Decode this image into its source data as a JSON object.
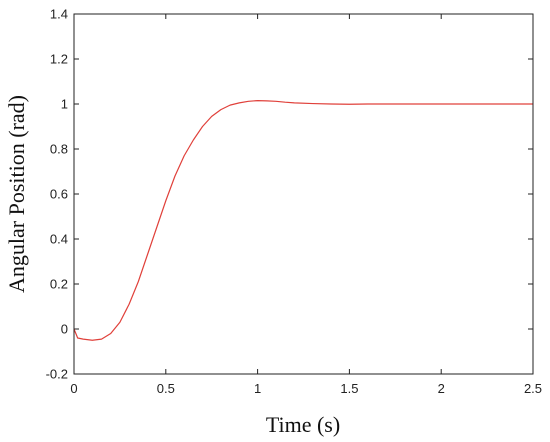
{
  "chart_data": {
    "type": "line",
    "xlabel": "Time (s)",
    "ylabel": "Angular Position (rad)",
    "xlim": [
      0,
      2.5
    ],
    "ylim": [
      -0.2,
      1.4
    ],
    "xticks": [
      "0",
      "0.5",
      "1",
      "1.5",
      "2",
      "2.5"
    ],
    "yticks": [
      "-0.2",
      "0",
      "0.2",
      "0.4",
      "0.6",
      "0.8",
      "1",
      "1.2",
      "1.4"
    ],
    "grid": false,
    "series": [
      {
        "color": "#e0403a",
        "x": [
          0,
          0.01,
          0.02,
          0.05,
          0.1,
          0.15,
          0.2,
          0.25,
          0.3,
          0.35,
          0.4,
          0.45,
          0.5,
          0.55,
          0.6,
          0.65,
          0.7,
          0.75,
          0.8,
          0.85,
          0.9,
          0.95,
          1.0,
          1.05,
          1.1,
          1.15,
          1.2,
          1.3,
          1.4,
          1.5,
          1.6,
          1.8,
          2.0,
          2.2,
          2.5
        ],
        "y": [
          0,
          -0.02,
          -0.04,
          -0.045,
          -0.05,
          -0.045,
          -0.02,
          0.03,
          0.11,
          0.21,
          0.33,
          0.45,
          0.57,
          0.68,
          0.77,
          0.84,
          0.9,
          0.945,
          0.975,
          0.995,
          1.005,
          1.012,
          1.015,
          1.014,
          1.012,
          1.008,
          1.005,
          1.002,
          1.0,
          0.999,
          1.0,
          1.0,
          1.0,
          1.0,
          1.0
        ]
      }
    ]
  }
}
